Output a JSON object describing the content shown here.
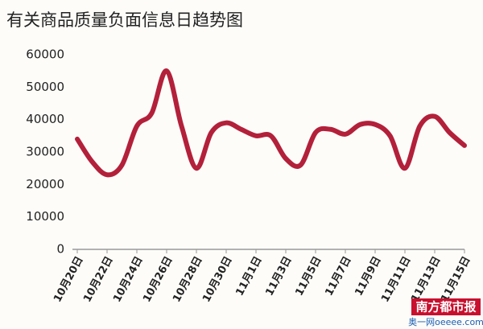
{
  "chart_data": {
    "type": "line",
    "title": "有关商品质量负面信息日趋势图",
    "categories": [
      "10月20日",
      null,
      "10月22日",
      null,
      "10月24日",
      null,
      "10月26日",
      null,
      "10月28日",
      null,
      "10月30日",
      null,
      "11月1日",
      null,
      "11月3日",
      null,
      "11月5日",
      null,
      "11月7日",
      null,
      "11月9日",
      null,
      "11月11日",
      null,
      "11月13日",
      null,
      "11月15日"
    ],
    "series": [
      {
        "color": "#b3203a",
        "values": [
          34000,
          27000,
          23000,
          26000,
          38000,
          42000,
          55000,
          38000,
          25000,
          36000,
          39000,
          37000,
          35000,
          35000,
          28000,
          26000,
          36000,
          37000,
          35500,
          38500,
          38500,
          35000,
          25000,
          38000,
          41000,
          36000,
          32000
        ]
      }
    ],
    "ylim": [
      0,
      60000
    ],
    "yticks": [
      0,
      10000,
      20000,
      30000,
      40000,
      50000,
      60000
    ],
    "grid": false,
    "watermark": {
      "brand": "南方都市报",
      "site": "奥一网oeeee.com"
    }
  }
}
